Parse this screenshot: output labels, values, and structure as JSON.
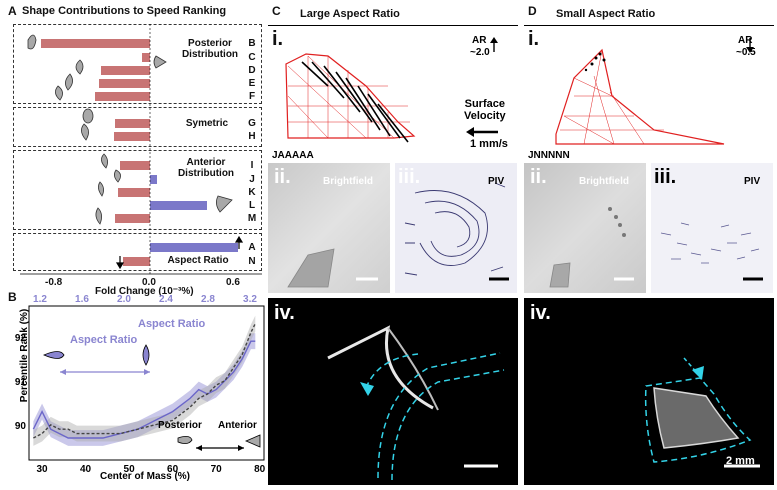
{
  "colors": {
    "red_bar": "#c87474",
    "blue_bar": "#7b78c9",
    "mesh": "#e02020",
    "purple": "#8a85d0",
    "black": "#000000"
  },
  "panel_a": {
    "letter": "A",
    "title": "Shape Contributions to Speed Ranking",
    "groups": [
      {
        "label": "Posterior\nDistribution",
        "rows": [
          "B",
          "C",
          "D",
          "E",
          "F"
        ]
      },
      {
        "label": "Symetric",
        "rows": [
          "G",
          "H"
        ]
      },
      {
        "label": "Anterior\nDistribution",
        "rows": [
          "I",
          "J",
          "K",
          "L",
          "M"
        ]
      },
      {
        "label": "Aspect Ratio",
        "rows": [
          "A",
          "N"
        ]
      }
    ],
    "xlabel": "Fold Change (10⁻³%)",
    "xticks": [
      "-0.8",
      "0.0",
      "0.6"
    ]
  },
  "panel_b": {
    "letter": "B",
    "ylabel": "Percentile Rank (%)",
    "xlabel": "Center of Mass (%)",
    "top_axis_label": "Aspect Ratio",
    "inset_label": "Aspect Ratio",
    "posterior": "Posterior",
    "anterior": "Anterior",
    "xticks": [
      "30",
      "40",
      "50",
      "60",
      "70",
      "80"
    ],
    "yticks": [
      "90",
      "91",
      "92"
    ],
    "top_ticks": [
      "1.2",
      "1.6",
      "2.0",
      "2.4",
      "2.8",
      "3.2"
    ]
  },
  "panel_c": {
    "letter": "C",
    "title": "Large Aspect Ratio",
    "i_label": "i.",
    "ar_text": "AR",
    "ar_value": "~2.0",
    "surface_velocity": "Surface\nVelocity",
    "scale": "1 mm/s",
    "seq": "JAAAAA",
    "ii_label": "ii.",
    "brightfield": "Brightfield",
    "iii_label": "iii.",
    "piv": "PIV",
    "iv_label": "iv."
  },
  "panel_d": {
    "letter": "D",
    "title": "Small Aspect Ratio",
    "i_label": "i.",
    "ar_text": "AR",
    "ar_value": "~0.5",
    "seq": "JNNNNN",
    "ii_label": "ii.",
    "brightfield": "Brightfield",
    "iii_label": "iii.",
    "piv": "PIV",
    "iv_label": "iv.",
    "scale": "2 mm"
  },
  "chart_data": [
    {
      "type": "bar",
      "title": "Shape Contributions to Speed Ranking",
      "xlabel": "Fold Change (10⁻³%)",
      "categories": [
        "B",
        "C",
        "D",
        "E",
        "F",
        "G",
        "H",
        "I",
        "J",
        "K",
        "L",
        "M",
        "A",
        "N"
      ],
      "values": [
        -0.81,
        -0.06,
        -0.36,
        -0.38,
        -0.41,
        -0.26,
        -0.27,
        -0.22,
        0.05,
        -0.24,
        0.42,
        -0.26,
        0.65,
        -0.2
      ],
      "xlim": [
        -0.9,
        0.75
      ]
    },
    {
      "type": "line",
      "xlabel": "Center of Mass (%)",
      "ylabel": "Percentile Rank (%)",
      "xlim": [
        27,
        81
      ],
      "ylim": [
        89.2,
        92.7
      ],
      "series": [
        {
          "name": "",
          "x": [
            28,
            30,
            32,
            34,
            36,
            38,
            40,
            44,
            48,
            52,
            56,
            60,
            64,
            66,
            68,
            70,
            72,
            74,
            76,
            78,
            79
          ],
          "values": [
            89.9,
            90.3,
            89.9,
            89.8,
            89.7,
            89.7,
            89.7,
            89.7,
            89.8,
            89.9,
            90.1,
            90.3,
            90.6,
            90.8,
            90.7,
            90.8,
            91.0,
            91.2,
            91.5,
            91.9,
            91.9
          ]
        },
        {
          "name": "",
          "x": [
            28,
            30,
            32,
            34,
            36,
            38,
            40,
            44,
            48,
            52,
            56,
            60,
            64,
            66,
            68,
            70,
            72,
            74,
            76,
            78,
            79
          ],
          "values": [
            89.7,
            89.8,
            90.0,
            89.9,
            89.9,
            89.8,
            89.8,
            89.8,
            89.8,
            89.9,
            90.0,
            90.1,
            90.4,
            90.6,
            90.7,
            90.9,
            91.0,
            91.3,
            91.6,
            92.1,
            92.3
          ]
        }
      ]
    }
  ]
}
